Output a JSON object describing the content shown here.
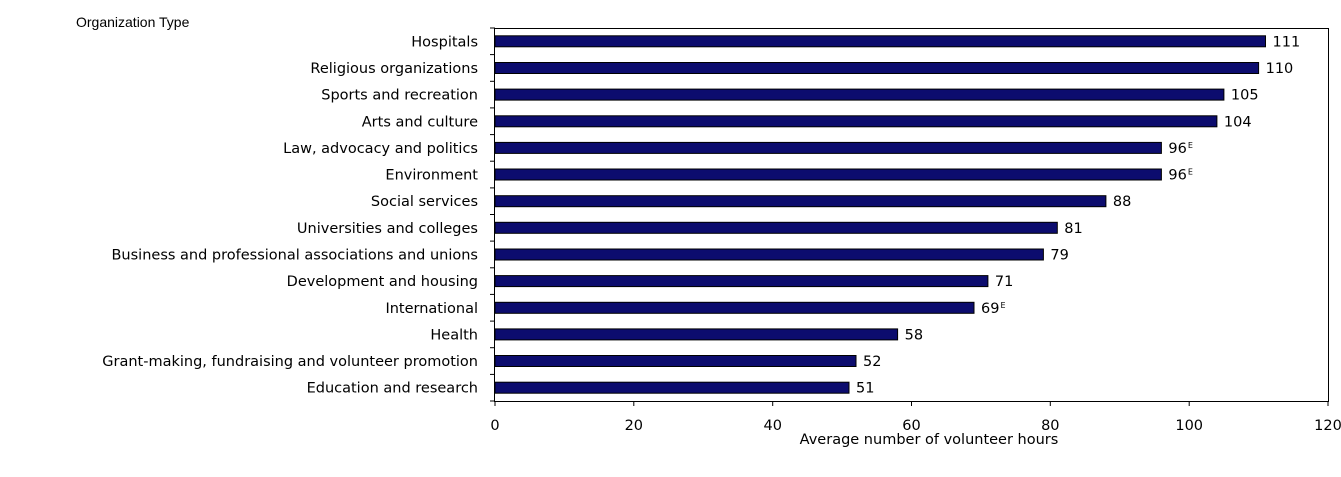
{
  "chart_data": {
    "type": "bar",
    "orientation": "horizontal",
    "category_axis_title": "Organization Type",
    "xlabel": "Average number of volunteer hours",
    "xlim": [
      0,
      120
    ],
    "xticks": [
      0,
      20,
      40,
      60,
      80,
      100,
      120
    ],
    "grid": false,
    "bar_color": "#0C0C6E",
    "categories": [
      "Hospitals",
      "Religious organizations",
      "Sports and recreation",
      "Arts and culture",
      "Law, advocacy and politics",
      "Environment",
      "Social services",
      "Universities and colleges",
      "Business and professional associations and unions",
      "Development and housing",
      "International",
      "Health",
      "Grant-making, fundraising and volunteer promotion",
      "Education and research"
    ],
    "values": [
      111,
      110,
      105,
      104,
      96,
      96,
      88,
      81,
      79,
      71,
      69,
      58,
      52,
      51
    ],
    "value_flags": [
      "",
      "",
      "",
      "",
      "E",
      "E",
      "",
      "",
      "",
      "",
      "E",
      "",
      "",
      ""
    ]
  }
}
